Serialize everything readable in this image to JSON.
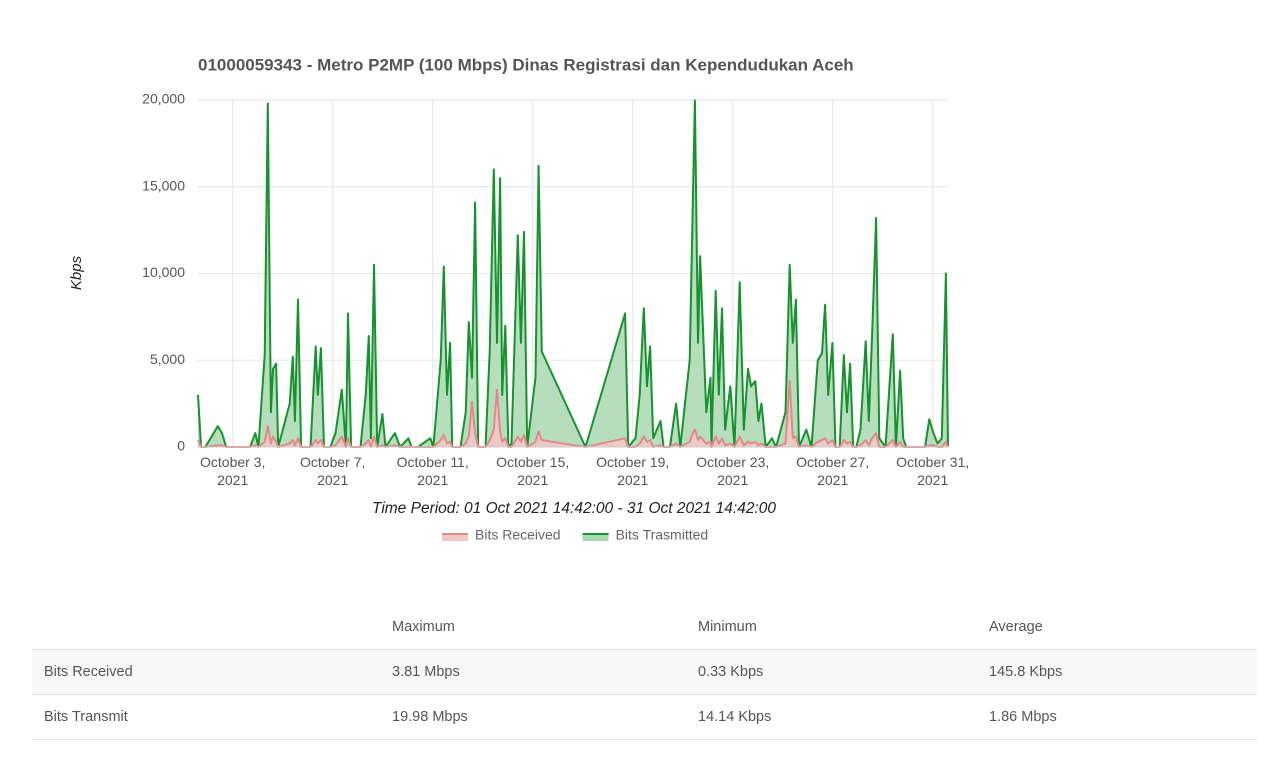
{
  "chart_data": {
    "type": "area",
    "title": "01000059343 - Metro P2MP (100 Mbps) Dinas Registrasi dan Kependudukan Aceh",
    "ylabel": "Kbps",
    "xlabel": "Time Period: 01 Oct 2021 14:42:00 - 31 Oct 2021 14:42:00",
    "xlim": [
      "2021-10-01 14:42",
      "2021-10-31 14:42"
    ],
    "xticks": [
      {
        "value": "2021-10-03 00:00",
        "label": "October 3, 2021"
      },
      {
        "value": "2021-10-07 00:00",
        "label": "October 7, 2021"
      },
      {
        "value": "2021-10-11 00:00",
        "label": "October 11, 2021"
      },
      {
        "value": "2021-10-15 00:00",
        "label": "October 15, 2021"
      },
      {
        "value": "2021-10-19 00:00",
        "label": "October 19, 2021"
      },
      {
        "value": "2021-10-23 00:00",
        "label": "October 23, 2021"
      },
      {
        "value": "2021-10-27 00:00",
        "label": "October 27, 2021"
      },
      {
        "value": "2021-10-31 00:00",
        "label": "October 31, 2021"
      }
    ],
    "ylim": [
      0,
      20000
    ],
    "yticks": [
      0,
      {
        "value": 5000,
        "label": "5,000"
      },
      {
        "value": 10000,
        "label": "10,000"
      },
      {
        "value": 15000,
        "label": "15,000"
      },
      {
        "value": 20000,
        "label": "20,000"
      }
    ],
    "grid": true,
    "legend": "bottom",
    "x": [
      "2021-10-01 14:42",
      "2021-10-01 17:42",
      "2021-10-01 21:42",
      "2021-10-02 09:42",
      "2021-10-02 13:42",
      "2021-10-02 17:42",
      "2021-10-03 06:42",
      "2021-10-03 16:42",
      "2021-10-03 21:42",
      "2021-10-04 00:42",
      "2021-10-04 06:42",
      "2021-10-04 09:42",
      "2021-10-04 12:42",
      "2021-10-04 14:42",
      "2021-10-04 17:42",
      "2021-10-04 19:42",
      "2021-10-05 06:42",
      "2021-10-05 09:42",
      "2021-10-05 11:42",
      "2021-10-05 14:42",
      "2021-10-05 17:42",
      "2021-10-06 02:42",
      "2021-10-06 07:42",
      "2021-10-06 09:42",
      "2021-10-06 12:42",
      "2021-10-06 15:42",
      "2021-10-06 21:42",
      "2021-10-07 02:42",
      "2021-10-07 08:42",
      "2021-10-07 12:42",
      "2021-10-07 14:42",
      "2021-10-07 17:42",
      "2021-10-08 02:42",
      "2021-10-08 07:42",
      "2021-10-08 10:42",
      "2021-10-08 12:42",
      "2021-10-08 15:42",
      "2021-10-08 18:42",
      "2021-10-08 23:42",
      "2021-10-09 02:42",
      "2021-10-09 11:42",
      "2021-10-09 16:42",
      "2021-10-10 00:42",
      "2021-10-10 03:42",
      "2021-10-10 09:42",
      "2021-10-10 21:42",
      "2021-10-11 00:42",
      "2021-10-11 07:42",
      "2021-10-11 10:42",
      "2021-10-11 13:42",
      "2021-10-11 16:42",
      "2021-10-11 18:42",
      "2021-10-12 02:42",
      "2021-10-12 07:42",
      "2021-10-12 10:42",
      "2021-10-12 13:42",
      "2021-10-12 16:42",
      "2021-10-12 19:42",
      "2021-10-13 02:42",
      "2021-10-13 06:42",
      "2021-10-13 10:42",
      "2021-10-13 13:42",
      "2021-10-13 16:42",
      "2021-10-13 18:42",
      "2021-10-13 21:42",
      "2021-10-14 00:42",
      "2021-10-14 03:42",
      "2021-10-14 09:42",
      "2021-10-14 12:42",
      "2021-10-14 15:42",
      "2021-10-14 18:42",
      "2021-10-15 00:42",
      "2021-10-15 02:42",
      "2021-10-15 05:42",
      "2021-10-15 08:42",
      "2021-10-17 02:42",
      "2021-10-18 16:42",
      "2021-10-18 19:42",
      "2021-10-19 02:42",
      "2021-10-19 06:42",
      "2021-10-19 10:42",
      "2021-10-19 13:42",
      "2021-10-19 16:42",
      "2021-10-19 19:42",
      "2021-10-20 02:42",
      "2021-10-20 05:42",
      "2021-10-20 11:42",
      "2021-10-20 17:42",
      "2021-10-20 21:42",
      "2021-10-21 06:42",
      "2021-10-21 09:42",
      "2021-10-21 11:42",
      "2021-10-21 14:42",
      "2021-10-21 16:42",
      "2021-10-21 19:42",
      "2021-10-21 22:42",
      "2021-10-22 02:42",
      "2021-10-22 03:42",
      "2021-10-22 07:42",
      "2021-10-22 10:42",
      "2021-10-22 13:42",
      "2021-10-22 16:42",
      "2021-10-22 21:42",
      "2021-10-23 01:42",
      "2021-10-23 06:42",
      "2021-10-23 10:42",
      "2021-10-23 14:42",
      "2021-10-23 17:42",
      "2021-10-23 21:42",
      "2021-10-24 00:42",
      "2021-10-24 03:42",
      "2021-10-24 07:42",
      "2021-10-24 13:42",
      "2021-10-24 17:42",
      "2021-10-25 02:42",
      "2021-10-25 06:42",
      "2021-10-25 09:42",
      "2021-10-25 12:42",
      "2021-10-25 15:42",
      "2021-10-25 22:42",
      "2021-10-26 03:42",
      "2021-10-26 09:42",
      "2021-10-26 13:42",
      "2021-10-26 16:42",
      "2021-10-26 19:42",
      "2021-10-26 23:42",
      "2021-10-27 02:42",
      "2021-10-27 06:42",
      "2021-10-27 10:42",
      "2021-10-27 13:42",
      "2021-10-27 16:42",
      "2021-10-27 19:42",
      "2021-10-27 22:42",
      "2021-10-28 02:42",
      "2021-10-28 07:42",
      "2021-10-28 10:42",
      "2021-10-28 13:42",
      "2021-10-28 17:42",
      "2021-10-28 20:42",
      "2021-10-29 02:42",
      "2021-10-29 09:42",
      "2021-10-29 12:42",
      "2021-10-29 16:42",
      "2021-10-29 19:42",
      "2021-10-29 22:42",
      "2021-10-30 16:42",
      "2021-10-30 20:42",
      "2021-10-31 00:42",
      "2021-10-31 04:42",
      "2021-10-31 08:42",
      "2021-10-31 12:42",
      "2021-10-31 14:42"
    ],
    "series": [
      {
        "name": "Bits Received",
        "color": "#e08a8a",
        "fill": "#f4c7c7",
        "values": [
          400,
          0,
          0,
          100,
          100,
          0,
          0,
          0,
          100,
          0,
          300,
          1200,
          200,
          600,
          300,
          0,
          200,
          400,
          100,
          500,
          0,
          0,
          400,
          200,
          400,
          0,
          0,
          100,
          600,
          0,
          500,
          0,
          0,
          200,
          400,
          0,
          600,
          0,
          100,
          0,
          100,
          0,
          0,
          0,
          0,
          0,
          0,
          400,
          700,
          200,
          300,
          0,
          0,
          200,
          600,
          2600,
          800,
          0,
          0,
          400,
          1000,
          3300,
          900,
          300,
          500,
          0,
          0,
          600,
          300,
          700,
          0,
          200,
          300,
          900,
          400,
          0,
          500,
          0,
          0,
          200,
          600,
          300,
          400,
          0,
          100,
          0,
          0,
          200,
          0,
          300,
          800,
          1000,
          400,
          600,
          400,
          200,
          300,
          0,
          600,
          200,
          500,
          100,
          200,
          0,
          600,
          100,
          300,
          200,
          300,
          100,
          200,
          0,
          0,
          0,
          200,
          3800,
          500,
          600,
          0,
          100,
          0,
          300,
          400,
          500,
          200,
          400,
          0,
          0,
          400,
          200,
          300,
          0,
          0,
          100,
          400,
          100,
          500,
          800,
          0,
          0,
          400,
          0,
          300,
          0,
          0,
          0,
          100,
          100,
          0,
          0,
          300,
          0
        ]
      },
      {
        "name": "Bits Trasmitted",
        "color": "#17922f",
        "fill": "#a9d8b2",
        "values": [
          3000,
          0,
          0,
          1200,
          800,
          0,
          0,
          0,
          800,
          0,
          5300,
          19800,
          2000,
          4500,
          4800,
          0,
          2500,
          5200,
          1500,
          8500,
          0,
          0,
          5800,
          3000,
          5700,
          0,
          0,
          800,
          3300,
          0,
          7700,
          0,
          0,
          3000,
          6400,
          500,
          10500,
          0,
          1900,
          0,
          800,
          0,
          500,
          0,
          0,
          500,
          0,
          5000,
          10400,
          3000,
          6000,
          0,
          0,
          2000,
          7200,
          4000,
          14100,
          0,
          0,
          5500,
          16000,
          6000,
          15500,
          3000,
          7000,
          0,
          200,
          12200,
          6000,
          12400,
          0,
          3000,
          4000,
          16200,
          5500,
          0,
          7700,
          0,
          500,
          3000,
          8000,
          3500,
          5800,
          500,
          1500,
          0,
          0,
          2500,
          0,
          5000,
          14000,
          19980,
          6000,
          11000,
          6500,
          2000,
          4000,
          0,
          9000,
          3000,
          8000,
          1000,
          3500,
          0,
          9500,
          1000,
          4500,
          3500,
          3800,
          1500,
          2500,
          0,
          500,
          0,
          2000,
          10500,
          6000,
          8500,
          0,
          1000,
          0,
          5000,
          5400,
          8200,
          3000,
          6000,
          0,
          0,
          5300,
          2000,
          4800,
          0,
          0,
          1000,
          6100,
          1500,
          6300,
          13200,
          500,
          0,
          6500,
          0,
          4400,
          500,
          0,
          0,
          1600,
          800,
          200,
          500,
          10000,
          0
        ]
      }
    ]
  },
  "table": {
    "headers": [
      "Maximum",
      "Minimum",
      "Average"
    ],
    "rows": [
      [
        "Bits Received",
        "3.81 Mbps",
        "0.33 Kbps",
        "145.8 Kbps"
      ],
      [
        "Bits Transmit",
        "19.98 Mbps",
        "14.14 Kbps",
        "1.86 Mbps"
      ]
    ]
  }
}
